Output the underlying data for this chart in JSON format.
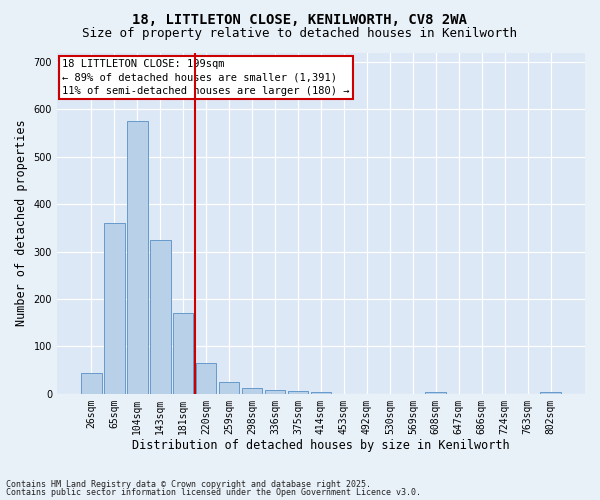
{
  "title1": "18, LITTLETON CLOSE, KENILWORTH, CV8 2WA",
  "title2": "Size of property relative to detached houses in Kenilworth",
  "xlabel": "Distribution of detached houses by size in Kenilworth",
  "ylabel": "Number of detached properties",
  "categories": [
    "26sqm",
    "65sqm",
    "104sqm",
    "143sqm",
    "181sqm",
    "220sqm",
    "259sqm",
    "298sqm",
    "336sqm",
    "375sqm",
    "414sqm",
    "453sqm",
    "492sqm",
    "530sqm",
    "569sqm",
    "608sqm",
    "647sqm",
    "686sqm",
    "724sqm",
    "763sqm",
    "802sqm"
  ],
  "values": [
    45,
    360,
    575,
    325,
    170,
    65,
    25,
    12,
    8,
    5,
    3,
    0,
    0,
    0,
    0,
    4,
    0,
    0,
    0,
    0,
    4
  ],
  "bar_color": "#b8d0e8",
  "bar_edgecolor": "#6699cc",
  "vline_color": "#cc0000",
  "ylim": [
    0,
    720
  ],
  "yticks": [
    0,
    100,
    200,
    300,
    400,
    500,
    600,
    700
  ],
  "annotation_title": "18 LITTLETON CLOSE: 199sqm",
  "annotation_line1": "← 89% of detached houses are smaller (1,391)",
  "annotation_line2": "11% of semi-detached houses are larger (180) →",
  "bg_color": "#dce8f5",
  "fig_bg_color": "#e8f0f8",
  "footer1": "Contains HM Land Registry data © Crown copyright and database right 2025.",
  "footer2": "Contains public sector information licensed under the Open Government Licence v3.0.",
  "title_fontsize": 10,
  "subtitle_fontsize": 9,
  "tick_fontsize": 7,
  "label_fontsize": 8.5,
  "annotation_fontsize": 7.5,
  "footer_fontsize": 6
}
